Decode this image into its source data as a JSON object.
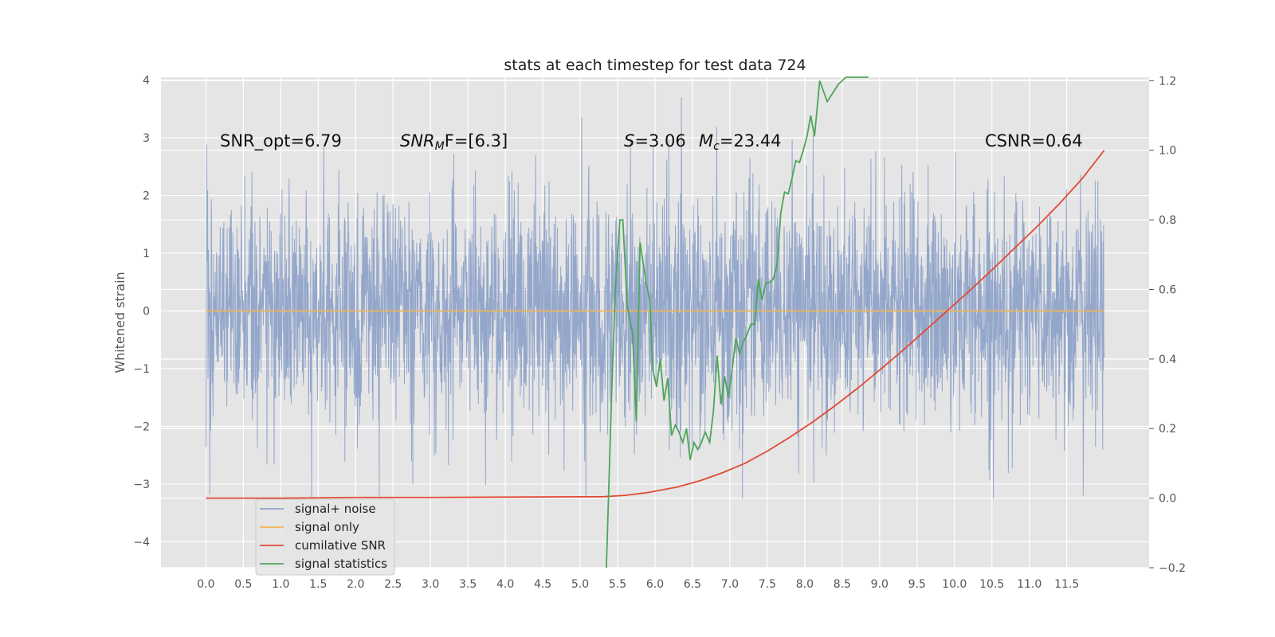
{
  "chart_data": {
    "type": "line",
    "title": "stats at each timestep for test data 724",
    "ylabel": "Whitened strain",
    "xlim": [
      -0.6,
      12.6
    ],
    "ylim": [
      -4.45,
      4.05
    ],
    "y2lim": [
      -0.2,
      1.21
    ],
    "x_ticks": [
      "0.0",
      "0.5",
      "1.0",
      "1.5",
      "2.0",
      "2.5",
      "3.0",
      "3.5",
      "4.0",
      "4.5",
      "5.0",
      "5.5",
      "6.0",
      "6.5",
      "7.0",
      "7.5",
      "8.0",
      "8.5",
      "9.0",
      "9.5",
      "10.0",
      "10.5",
      "11.0",
      "11.5"
    ],
    "y_ticks": [
      4,
      3,
      2,
      1,
      0,
      -1,
      -2,
      -3,
      -4
    ],
    "y_tick_labels": [
      "4",
      "3",
      "2",
      "1",
      "0",
      "−1",
      "−2",
      "−3",
      "−4"
    ],
    "y2_ticks": [
      1.2,
      1.0,
      0.8,
      0.6,
      0.4,
      0.2,
      0.0,
      -0.2
    ],
    "y2_tick_labels": [
      "1.2",
      "1.0",
      "0.8",
      "0.6",
      "0.4",
      "0.2",
      "0.0",
      "−0.2"
    ],
    "grid": true,
    "legend_position": "lower-left",
    "annotations": {
      "snr_opt": "SNR_opt=6.79",
      "snr_mf_main": "SNR",
      "snr_mf_sub": "M",
      "snr_mf_rest": "F=[6.3]",
      "s_var": "S",
      "s_val": "=3.06",
      "mc_var": "M",
      "mc_sub": "c",
      "mc_val": "=23.44",
      "csnr": "CSNR=0.64"
    },
    "series": [
      {
        "name": "signal+ noise",
        "axis": "left",
        "color": "#8fa3c9",
        "kind": "noise",
        "x_range": [
          0.0,
          12.0
        ],
        "typical_band": [
          -1.6,
          1.6
        ],
        "extremes": [
          -3.25,
          3.7
        ]
      },
      {
        "name": "signal only",
        "axis": "left",
        "color": "#f0b45a",
        "x": [
          0.0,
          12.0
        ],
        "values": [
          0.0,
          0.0
        ]
      },
      {
        "name": "cumilative SNR",
        "axis": "right",
        "color": "#e24a33",
        "x": [
          0.0,
          1.0,
          2.0,
          3.0,
          4.0,
          5.0,
          5.3,
          5.6,
          5.9,
          6.0,
          6.3,
          6.6,
          6.9,
          7.2,
          7.5,
          7.8,
          8.1,
          8.4,
          8.7,
          9.0,
          9.3,
          9.6,
          9.9,
          10.2,
          10.5,
          10.8,
          11.1,
          11.4,
          11.7,
          12.0
        ],
        "values": [
          0.0,
          0.0,
          0.002,
          0.002,
          0.003,
          0.004,
          0.004,
          0.008,
          0.016,
          0.02,
          0.032,
          0.05,
          0.073,
          0.1,
          0.135,
          0.175,
          0.218,
          0.265,
          0.315,
          0.368,
          0.423,
          0.48,
          0.538,
          0.596,
          0.656,
          0.718,
          0.78,
          0.846,
          0.917,
          1.0
        ]
      },
      {
        "name": "signal statistics",
        "axis": "right",
        "color": "#4ea55a",
        "x": [
          5.35,
          5.42,
          5.47,
          5.53,
          5.57,
          5.63,
          5.7,
          5.75,
          5.8,
          5.88,
          5.93,
          5.97,
          6.02,
          6.07,
          6.12,
          6.17,
          6.22,
          6.27,
          6.32,
          6.37,
          6.42,
          6.47,
          6.52,
          6.57,
          6.62,
          6.67,
          6.73,
          6.78,
          6.83,
          6.88,
          6.93,
          6.98,
          7.03,
          7.08,
          7.13,
          7.18,
          7.23,
          7.28,
          7.33,
          7.38,
          7.43,
          7.48,
          7.53,
          7.58,
          7.63,
          7.68,
          7.73,
          7.78,
          7.83,
          7.88,
          7.93,
          7.98,
          8.03,
          8.08,
          8.13,
          8.2,
          8.3,
          8.45,
          8.55,
          8.65,
          8.75,
          8.85
        ],
        "values": [
          -0.2,
          0.3,
          0.6,
          0.8,
          0.8,
          0.55,
          0.475,
          0.22,
          0.735,
          0.62,
          0.57,
          0.37,
          0.32,
          0.4,
          0.28,
          0.345,
          0.18,
          0.21,
          0.19,
          0.16,
          0.2,
          0.11,
          0.16,
          0.14,
          0.16,
          0.19,
          0.16,
          0.25,
          0.41,
          0.27,
          0.35,
          0.29,
          0.37,
          0.46,
          0.415,
          0.45,
          0.47,
          0.5,
          0.5,
          0.63,
          0.57,
          0.62,
          0.62,
          0.63,
          0.67,
          0.82,
          0.88,
          0.875,
          0.92,
          0.97,
          0.965,
          1.0,
          1.04,
          1.1,
          1.04,
          1.2,
          1.14,
          1.19,
          1.21,
          1.21,
          1.21,
          1.21
        ]
      }
    ]
  }
}
